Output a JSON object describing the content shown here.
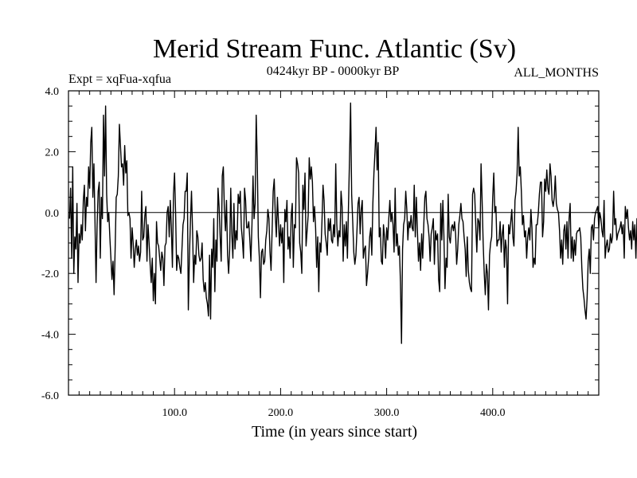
{
  "chart_data": {
    "type": "line",
    "title": "Merid Stream Func. Atlantic (Sv)",
    "subtitle_left": "Expt = xqFua-xqfua",
    "subtitle_center": "0424kyr BP - 0000kyr BP",
    "subtitle_right": "ALL_MONTHS",
    "xlabel": "Time (in years since start)",
    "ylabel": "",
    "xlim": [
      0,
      500
    ],
    "ylim": [
      -6.0,
      4.0
    ],
    "x_ticks": [
      100,
      200,
      300,
      400
    ],
    "x_tick_labels": [
      "100.0",
      "200.0",
      "300.0",
      "400.0"
    ],
    "y_ticks": [
      -6,
      -4,
      -2,
      0,
      2,
      4
    ],
    "y_tick_labels": [
      "-6.0",
      "-4.0",
      "-2.0",
      "0.0",
      "2.0",
      "4.0"
    ],
    "zero_line": true,
    "grid": false,
    "series": [
      {
        "name": "Merid Stream Func. Atlantic",
        "x_start": 1,
        "x_step": 1,
        "values": [
          -0.2,
          0.8,
          -1.5,
          1.5,
          -2.0,
          -0.8,
          -1.2,
          0.3,
          -2.3,
          -0.7,
          -1.0,
          -0.4,
          -0.9,
          0.4,
          0.9,
          -0.6,
          0.5,
          0.2,
          1.5,
          0.8,
          2.3,
          2.8,
          0.5,
          1.6,
          -0.3,
          -2.3,
          -0.4,
          0.7,
          1.0,
          -1.5,
          0.5,
          -0.2,
          3.2,
          1.2,
          3.5,
          0.6,
          -0.3,
          0.0,
          -0.8,
          -1.5,
          -2.2,
          -1.6,
          -2.7,
          -1.2,
          0.5,
          0.6,
          1.2,
          2.9,
          2.2,
          1.5,
          1.6,
          0.9,
          2.2,
          1.3,
          1.7,
          -0.1,
          0.0,
          -0.2,
          -1.5,
          -0.5,
          -1.0,
          -1.8,
          -1.2,
          -0.9,
          -1.4,
          -1.1,
          -1.6,
          -1.3,
          0.7,
          -0.9,
          -0.8,
          -0.1,
          0.2,
          -1.6,
          -0.4,
          -1.0,
          -1.7,
          -2.3,
          -1.5,
          -2.9,
          -2.0,
          -3.0,
          -0.3,
          -1.0,
          -1.1,
          -1.5,
          -1.9,
          -1.3,
          -1.5,
          -2.4,
          -1.1,
          -1.0,
          0.0,
          0.2,
          -0.8,
          0.4,
          -0.5,
          -1.8,
          0.6,
          1.3,
          0.0,
          -1.9,
          -1.4,
          -1.5,
          -1.8,
          -2.0,
          -1.2,
          -0.4,
          -0.2,
          0.7,
          0.7,
          1.3,
          -3.2,
          -1.5,
          -0.3,
          0.7,
          -0.6,
          -2.3,
          -1.4,
          -1.7,
          -0.6,
          -0.8,
          -1.4,
          -1.6,
          -1.5,
          -1.0,
          -2.2,
          -2.6,
          -2.3,
          -2.8,
          -3.0,
          -3.4,
          -1.4,
          -3.5,
          -1.2,
          -1.8,
          -0.2,
          -2.6,
          -0.9,
          -1.6,
          0.8,
          0.2,
          -0.8,
          -1.6,
          1.2,
          1.5,
          0.1,
          -0.6,
          0.4,
          -1.4,
          -2.0,
          -1.2,
          0.8,
          -0.7,
          -1.5,
          0.3,
          -1.2,
          -0.6,
          -0.9,
          0.6,
          0.3,
          0.7,
          -0.5,
          -0.9,
          -1.5,
          0.8,
          0.4,
          -0.5,
          -0.5,
          -0.3,
          -0.9,
          -1.6,
          -0.4,
          1.2,
          -0.2,
          0.3,
          3.2,
          1.7,
          -0.8,
          -1.5,
          -2.8,
          -1.3,
          -1.2,
          -1.7,
          -1.6,
          -0.9,
          -0.6,
          0.1,
          -0.2,
          -1.3,
          -1.9,
          -0.6,
          0.7,
          1.1,
          -0.1,
          -0.8,
          0.5,
          -0.3,
          -1.1,
          -0.4,
          -1.0,
          -0.5,
          -2.3,
          0.1,
          -0.3,
          0.4,
          -1.2,
          -0.8,
          -1.5,
          -0.1,
          0.3,
          -1.8,
          -0.4,
          -0.5,
          1.8,
          1.6,
          1.3,
          -1.0,
          -1.3,
          -2.0,
          0.9,
          0.1,
          1.3,
          -1.1,
          -0.6,
          -0.1,
          1.8,
          1.1,
          1.5,
          1.0,
          -0.3,
          0.2,
          -0.5,
          -1.8,
          -0.8,
          -2.6,
          -1.0,
          -1.3,
          -0.3,
          0.9,
          0.4,
          -0.7,
          -1.0,
          -1.4,
          -0.2,
          -0.6,
          -0.2,
          -0.9,
          -1.0,
          -0.4,
          -0.8,
          1.6,
          -0.4,
          -1.1,
          -0.6,
          -0.8,
          0.7,
          0.2,
          -1.6,
          -0.4,
          -1.1,
          -0.3,
          -1.5,
          0.2,
          1.8,
          3.6,
          0.6,
          -0.3,
          -1.3,
          -1.7,
          -1.4,
          -0.6,
          0.3,
          0.5,
          -0.7,
          0.1,
          0.4,
          -1.5,
          -1.2,
          -1.1,
          -2.4,
          -2.0,
          -1.5,
          -0.8,
          -0.5,
          -1.4,
          0.3,
          1.3,
          2.0,
          2.8,
          1.4,
          2.3,
          -0.8,
          -0.5,
          -1.6,
          -1.7,
          -0.4,
          -0.8,
          -1.5,
          -0.5,
          -0.9,
          -0.2,
          0.4,
          -0.3,
          0.0,
          -0.4,
          -1.3,
          0.8,
          -1.1,
          -0.7,
          -1.4,
          -1.1,
          -2.3,
          -4.3,
          -1.2,
          -0.4,
          -0.2,
          0.7,
          0.1,
          -0.9,
          -0.3,
          -0.5,
          -0.1,
          -0.5,
          -0.6,
          0.9,
          -0.8,
          0.5,
          -0.6,
          -1.6,
          -1.0,
          -1.9,
          -0.7,
          -1.5,
          -0.4,
          0.5,
          0.7,
          -0.2,
          -0.4,
          -0.8,
          -1.6,
          -0.7,
          -0.5,
          -0.2,
          -1.7,
          -0.6,
          -0.9,
          -0.7,
          -2.2,
          -2.6,
          0.3,
          -0.9,
          0.4,
          -0.8,
          -2.5,
          -1.5,
          -1.8,
          0.6,
          -0.8,
          -1.0,
          -0.5,
          -0.4,
          -0.6,
          -0.3,
          -0.7,
          -1.7,
          -1.2,
          -0.4,
          -0.1,
          0.3,
          -0.2,
          -0.3,
          -0.8,
          -1.2,
          -2.1,
          -0.8,
          -1.9,
          -2.3,
          -2.5,
          -2.6,
          0.6,
          0.8,
          0.6,
          -0.4,
          -1.3,
          -0.2,
          -0.3,
          -0.9,
          1.6,
          0.4,
          -1.0,
          -2.0,
          -2.7,
          -1.7,
          -2.0,
          -3.2,
          -1.4,
          -1.0,
          -0.8,
          0.5,
          1.3,
          0.0,
          0.2,
          -1.1,
          -0.9,
          -0.9,
          -0.3,
          -1.3,
          -0.7,
          -0.4,
          -1.8,
          -0.9,
          -1.2,
          -3.0,
          -0.4,
          -0.7,
          -0.3,
          0.1,
          -0.8,
          -1.1,
          0.4,
          0.7,
          1.3,
          2.8,
          1.2,
          1.5,
          0.7,
          -0.4,
          -0.1,
          -0.8,
          -0.6,
          -1.5,
          -0.8,
          -0.5,
          -0.9,
          0.1,
          -0.5,
          -1.8,
          -1.5,
          -1.7,
          -0.4,
          -0.4,
          0.0,
          0.6,
          1.0,
          1.0,
          -0.8,
          -0.3,
          1.1,
          0.7,
          1.4,
          0.8,
          0.6,
          1.6,
          1.2,
          0.4,
          0.2,
          0.5,
          1.2,
          0.3,
          0.1,
          0.0,
          -0.6,
          -1.5,
          -0.9,
          -1.7,
          -0.6,
          -0.4,
          -1.2,
          -0.3,
          -1.5,
          -0.2,
          0.3,
          -1.5,
          -0.8,
          -1.6,
          -0.9,
          -1.4,
          -0.7,
          -0.6,
          -0.6,
          -0.5,
          -0.8,
          -1.8,
          -2.5,
          -2.8,
          -3.2,
          -3.5,
          -2.8,
          -1.6,
          -1.2,
          -2.0,
          -0.5,
          -0.4,
          -0.9,
          -0.2,
          0.0,
          0.1,
          0.2,
          -0.5,
          0.0,
          -0.2,
          -0.6,
          -0.8,
          0.4,
          -1.5,
          -1.1,
          -0.9,
          -1.3,
          -1.2,
          -0.7,
          -1.0,
          -0.8,
          0.7,
          -0.4,
          -0.2,
          -0.9,
          -0.7,
          -0.6,
          -0.5,
          -0.3,
          -0.7,
          -0.4,
          -1.5,
          0.2,
          -0.2,
          0.1,
          -0.5,
          -0.9,
          -0.6,
          -1.2,
          -0.3,
          -0.9,
          -0.4,
          -1.5,
          -0.2,
          -0.8,
          -0.9,
          0.0,
          0.7,
          0.2,
          -1.1,
          -0.1,
          0.8,
          -0.6,
          -1.6,
          -0.9,
          -0.8,
          -0.5,
          -1.0,
          -0.7,
          -0.5,
          -1.7,
          -0.4
        ]
      }
    ]
  }
}
